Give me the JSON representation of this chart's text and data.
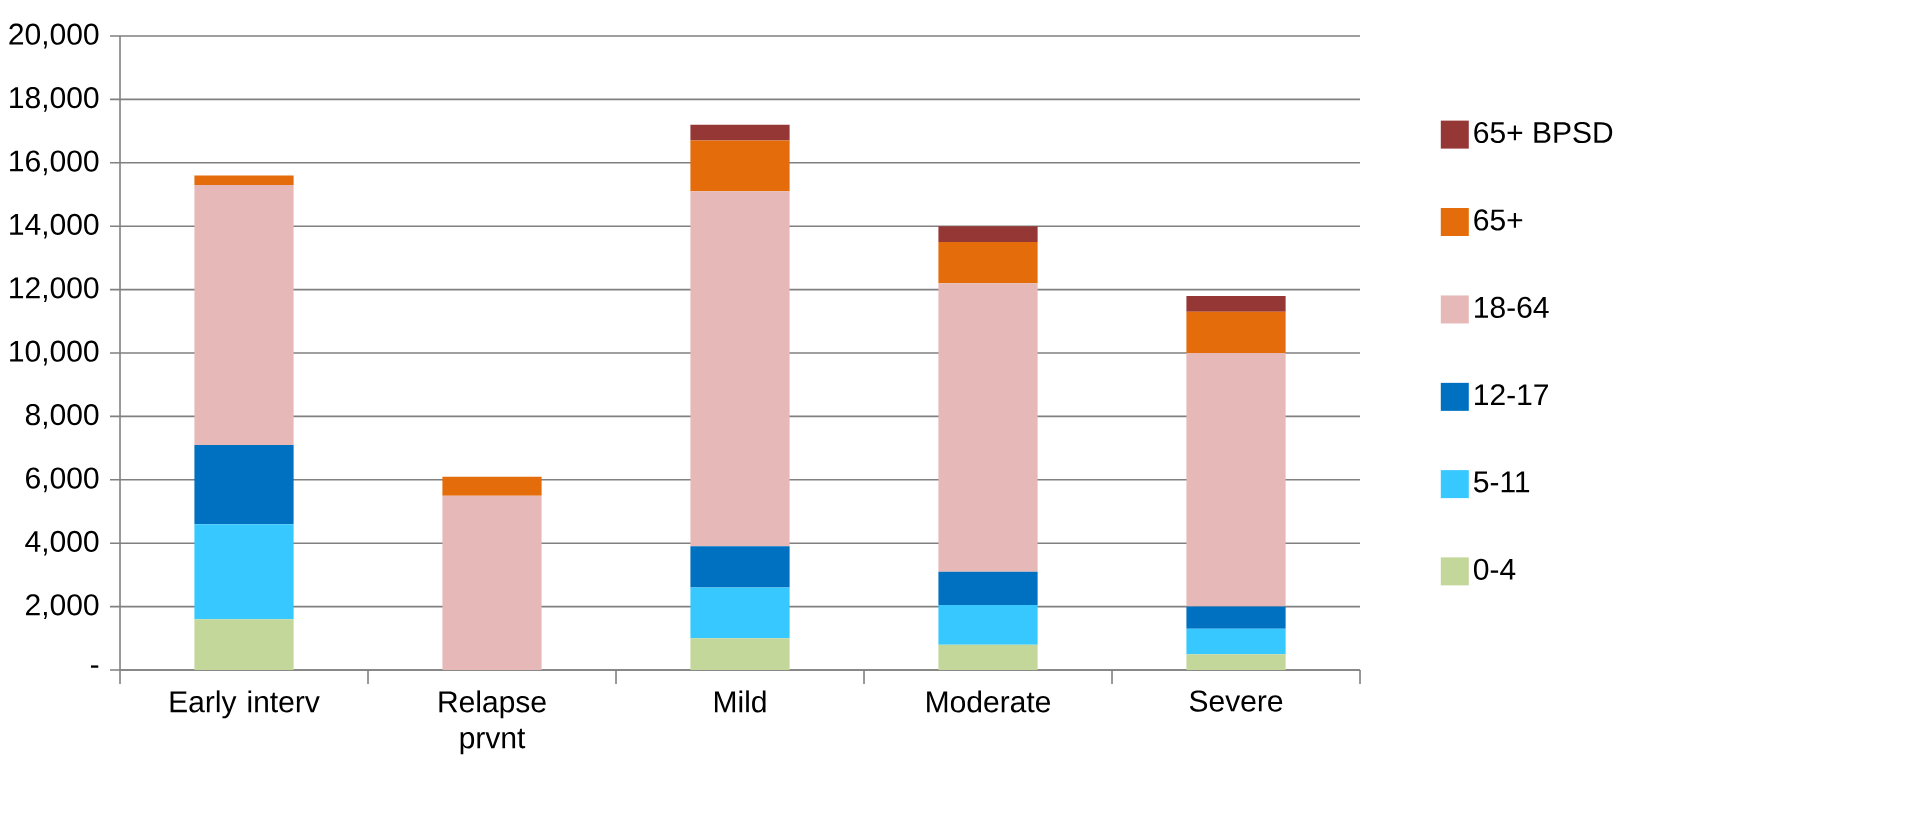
{
  "chart_data": {
    "type": "bar",
    "stacked": true,
    "categories": [
      "Early interv",
      "Relapse prvnt",
      "Mild",
      "Moderate",
      "Severe"
    ],
    "series": [
      {
        "name": "0-4",
        "color": "#c4d79b",
        "values": [
          1600,
          0,
          1000,
          800,
          500
        ]
      },
      {
        "name": "5-11",
        "color": "#37c8ff",
        "values": [
          3000,
          0,
          1600,
          1250,
          800
        ]
      },
      {
        "name": "12-17",
        "color": "#0070c0",
        "values": [
          2500,
          0,
          1300,
          1050,
          700
        ]
      },
      {
        "name": "18-64",
        "color": "#e6b8b7",
        "values": [
          8200,
          5500,
          11200,
          9100,
          8000
        ]
      },
      {
        "name": "65+",
        "color": "#e46c0a",
        "values": [
          300,
          600,
          1600,
          1300,
          1300
        ]
      },
      {
        "name": "65+ BPSD",
        "color": "#953735",
        "values": [
          0,
          0,
          500,
          500,
          500
        ]
      }
    ],
    "ylim": [
      0,
      20000
    ],
    "yticks": [
      {
        "value": 0,
        "label": "-"
      },
      {
        "value": 2000,
        "label": "2,000"
      },
      {
        "value": 4000,
        "label": "4,000"
      },
      {
        "value": 6000,
        "label": "6,000"
      },
      {
        "value": 8000,
        "label": "8,000"
      },
      {
        "value": 10000,
        "label": "10,000"
      },
      {
        "value": 12000,
        "label": "12,000"
      },
      {
        "value": 14000,
        "label": "14,000"
      },
      {
        "value": 16000,
        "label": "16,000"
      },
      {
        "value": 18000,
        "label": "18,000"
      },
      {
        "value": 20000,
        "label": "20,000"
      }
    ],
    "grid": "y",
    "legend": "right"
  }
}
